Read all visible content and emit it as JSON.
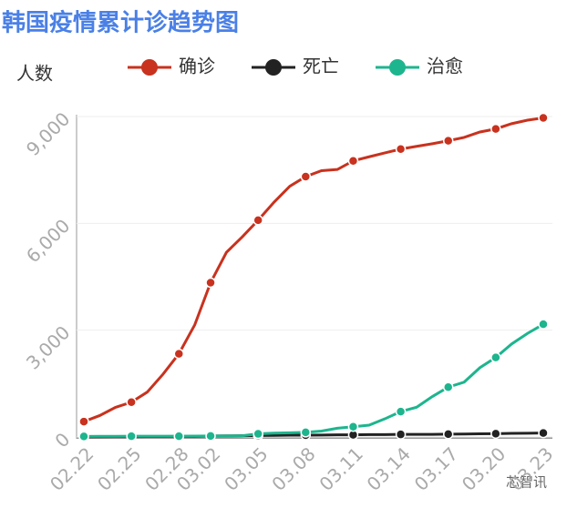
{
  "chart_data": {
    "type": "line",
    "title": "韩国疫情累计诊趋势图",
    "y_label": "人数",
    "watermark": "芯智讯",
    "categories": [
      "02.22",
      null,
      null,
      "02.25",
      null,
      null,
      "02.28",
      null,
      "03.02",
      null,
      null,
      "03.05",
      null,
      null,
      "03.08",
      null,
      null,
      "03.11",
      null,
      null,
      "03.14",
      null,
      null,
      "03.17",
      null,
      null,
      "03.20",
      null,
      null,
      "03.23"
    ],
    "ylim": [
      0,
      9000
    ],
    "yticks": [
      0,
      {
        "value": 3000,
        "label": "3,000"
      },
      {
        "value": 6000,
        "label": "6,000"
      },
      {
        "value": 9000,
        "label": "9,000"
      }
    ],
    "grid": true,
    "series": [
      {
        "name": "确诊",
        "color": "#c8321e",
        "values": [
          433,
          602,
          833,
          977,
          1261,
          1766,
          2337,
          3150,
          4335,
          5186,
          5621,
          6088,
          6593,
          7041,
          7313,
          7478,
          7513,
          7755,
          7869,
          7979,
          8086,
          8162,
          8236,
          8320,
          8413,
          8565,
          8652,
          8799,
          8897,
          8961
        ]
      },
      {
        "name": "死亡",
        "color": "#222222",
        "values": [
          2,
          6,
          8,
          10,
          12,
          13,
          16,
          17,
          28,
          32,
          35,
          42,
          44,
          50,
          51,
          54,
          60,
          60,
          66,
          67,
          72,
          75,
          75,
          81,
          84,
          91,
          94,
          102,
          104,
          111
        ]
      },
      {
        "name": "治愈",
        "color": "#1db58e",
        "values": [
          16,
          18,
          18,
          22,
          22,
          22,
          22,
          26,
          30,
          30,
          34,
          88,
          108,
          118,
          130,
          166,
          247,
          288,
          333,
          510,
          714,
          834,
          1137,
          1401,
          1540,
          1947,
          2233,
          2612,
          2909,
          3166
        ]
      }
    ]
  }
}
